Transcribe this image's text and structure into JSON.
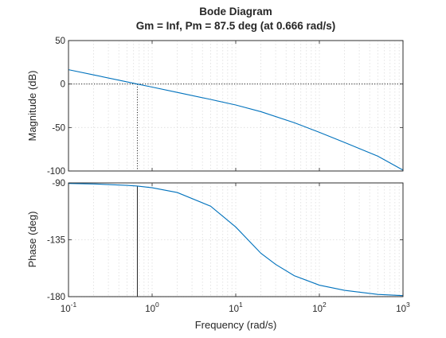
{
  "chart_data": {
    "type": "line",
    "title": "Bode Diagram",
    "subtitle": "Gm = Inf,  Pm = 87.5 deg (at 0.666 rad/s)",
    "xlabel": "Frequency  (rad/s)",
    "xscale": "log",
    "xlim": [
      0.1,
      1000
    ],
    "x_tick_labels": [
      {
        "value": 0.1,
        "base": "10",
        "exp": "-1"
      },
      {
        "value": 1,
        "base": "10",
        "exp": "0"
      },
      {
        "value": 10,
        "base": "10",
        "exp": "1"
      },
      {
        "value": 100,
        "base": "10",
        "exp": "2"
      },
      {
        "value": 1000,
        "base": "10",
        "exp": "3"
      }
    ],
    "grid": true,
    "crossover_frequency": 0.666,
    "panels": [
      {
        "ylabel": "Magnitude (dB)",
        "ylim": [
          -100,
          50
        ],
        "yticks": [
          50,
          0,
          -50,
          -100
        ],
        "y_tick_labels": [
          "50",
          "0",
          "-50",
          "-100"
        ],
        "reference_line": 0,
        "series": [
          {
            "x": [
              0.1,
              0.2,
              0.5,
              0.666,
              1,
              2,
              5,
              10,
              20,
              50,
              100,
              200,
              500,
              1000
            ],
            "values": [
              16.5,
              10.5,
              2.5,
              0,
              -3.5,
              -9.6,
              -17.7,
              -24.1,
              -31.8,
              -44.4,
              -55.5,
              -67.2,
              -83.0,
              -99.0
            ]
          }
        ]
      },
      {
        "ylabel": "Phase (deg)",
        "ylim": [
          -180,
          -90
        ],
        "yticks": [
          -90,
          -135,
          -180
        ],
        "y_tick_labels": [
          "-90",
          "-135",
          "-180"
        ],
        "reference_line": -180,
        "series": [
          {
            "x": [
              0.1,
              0.2,
              0.5,
              0.666,
              1,
              2,
              5,
              10,
              20,
              30,
              50,
              100,
              200,
              500,
              1000
            ],
            "values": [
              -90.4,
              -90.8,
              -91.9,
              -92.5,
              -93.8,
              -97.6,
              -108.4,
              -124.9,
              -145.7,
              -154.5,
              -163.4,
              -170.9,
              -175.0,
              -178.2,
              -179.2
            ]
          }
        ]
      }
    ],
    "colors": {
      "curve": "#0072bd",
      "axes": "#262626",
      "grid": "#dcdcdc"
    }
  }
}
